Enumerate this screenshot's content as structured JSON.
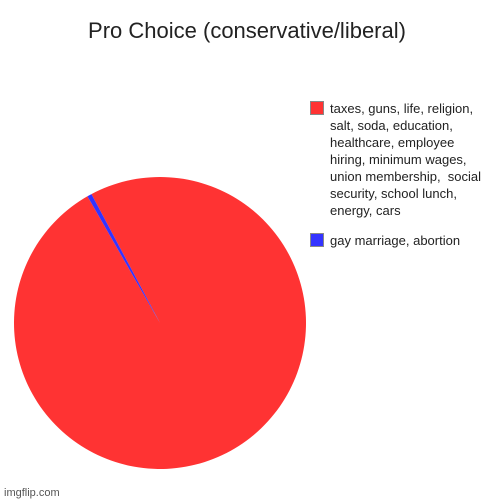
{
  "chart_data": {
    "type": "pie",
    "title": "Pro Choice (conservative/liberal)",
    "categories": [
      "taxes, guns, life, religion, salt, soda, education, healthcare, employee hiring, minimum wages, union membership,  social security, school lunch, energy, cars",
      "gay marriage, abortion"
    ],
    "values": [
      99.5,
      0.5
    ],
    "colors": [
      "#ff3333",
      "#3333ff"
    ],
    "legend": "right"
  },
  "watermark": "imgflip.com"
}
